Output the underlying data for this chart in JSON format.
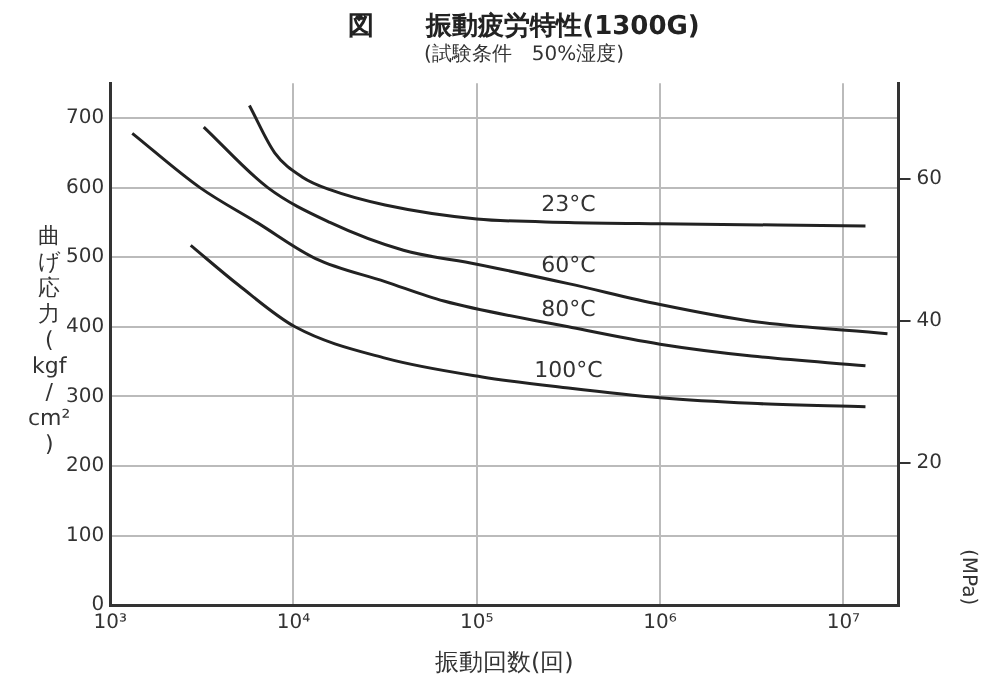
{
  "chart_data": {
    "type": "line",
    "title": "図　　振動疲労特性(1300G)",
    "subtitle": "(試験条件　50%湿度)",
    "xlabel": "振動回数(回)",
    "ylabel": "曲げ応力(kgf/cm²)",
    "y2label": "(MPa)",
    "log": "x",
    "xlim": [
      1000,
      20000000
    ],
    "xticks": [
      {
        "value": 1000,
        "label": "10³"
      },
      {
        "value": 10000,
        "label": "10⁴"
      },
      {
        "value": 100000,
        "label": "10⁵"
      },
      {
        "value": 1000000,
        "label": "10⁶"
      },
      {
        "value": 10000000,
        "label": "10⁷"
      }
    ],
    "ylim": [
      0,
      750
    ],
    "yticks": [
      0,
      100,
      200,
      300,
      400,
      500,
      600,
      700
    ],
    "y2lim": [
      0,
      73.5
    ],
    "y2ticks": [
      20,
      40,
      60
    ],
    "grid": true,
    "legend": false,
    "marker": "none",
    "line_style": "solid",
    "series": [
      {
        "name": "23°C",
        "color": "#222222",
        "x": [
          5750,
          7900,
          11200,
          15800,
          31600,
          100000,
          316000,
          1000000,
          13200000
        ],
        "values": [
          718,
          650,
          615,
          597,
          575,
          555,
          550,
          548,
          545
        ]
      },
      {
        "name": "60°C",
        "color": "#222222",
        "x": [
          3240,
          7240,
          15800,
          39800,
          100000,
          316000,
          1000000,
          3160000,
          17400000
        ],
        "values": [
          687,
          600,
          550,
          510,
          490,
          462,
          432,
          408,
          390
        ]
      },
      {
        "name": "80°C",
        "color": "#222222",
        "x": [
          1320,
          3090,
          6310,
          13200,
          31600,
          66100,
          316000,
          1000000,
          3160000,
          13200000
        ],
        "values": [
          678,
          600,
          550,
          498,
          465,
          437,
          400,
          375,
          358,
          344
        ]
      },
      {
        "name": "100°C",
        "color": "#222222",
        "x": [
          2750,
          5010,
          10200,
          31600,
          107000,
          316000,
          1000000,
          3160000,
          13200000
        ],
        "values": [
          517,
          460,
          400,
          355,
          328,
          312,
          298,
          290,
          285
        ]
      }
    ]
  }
}
